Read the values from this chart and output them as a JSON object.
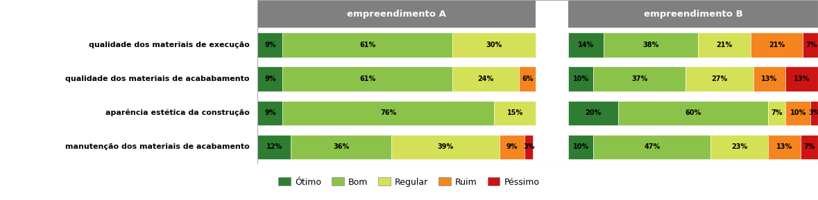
{
  "categories": [
    "qualidade dos materiais de execução",
    "qualidade dos materiais de acababamento",
    "aparência estética da construção",
    "manutenção dos materiais de acabamento"
  ],
  "header_A": "empreendimento A",
  "header_B": "empreendimento B",
  "data_A": [
    [
      9,
      61,
      30,
      0,
      0
    ],
    [
      9,
      61,
      24,
      6,
      0
    ],
    [
      9,
      76,
      15,
      0,
      0
    ],
    [
      12,
      36,
      39,
      9,
      3
    ]
  ],
  "data_B": [
    [
      14,
      38,
      21,
      21,
      7
    ],
    [
      10,
      37,
      27,
      13,
      13
    ],
    [
      20,
      60,
      7,
      10,
      3
    ],
    [
      10,
      47,
      23,
      13,
      7
    ]
  ],
  "labels_A": [
    [
      "9%",
      "61%",
      "30%",
      "",
      ""
    ],
    [
      "9%",
      "61%",
      "24%",
      "6%",
      ""
    ],
    [
      "9%",
      "76%",
      "15%",
      "",
      ""
    ],
    [
      "12%",
      "36%",
      "39%",
      "9%",
      "3%"
    ]
  ],
  "labels_B": [
    [
      "14%",
      "38%",
      "21%",
      "21%",
      "7%"
    ],
    [
      "10%",
      "37%",
      "27%",
      "13%",
      "13%"
    ],
    [
      "20%",
      "60%",
      "7%",
      "10%",
      "3%"
    ],
    [
      "10%",
      "47%",
      "23%",
      "13%",
      "7%"
    ]
  ],
  "colors": [
    "#2e7d32",
    "#8bc34a",
    "#d4e157",
    "#f4851f",
    "#cc1414"
  ],
  "legend_labels": [
    "Ótimo",
    "Bom",
    "Regular",
    "Ruim",
    "Péssimo"
  ],
  "header_color": "#808080",
  "header_text_color": "#ffffff",
  "background_color": "#ffffff",
  "label_fontsize": 7.0,
  "category_fontsize": 8.0,
  "header_fontsize": 9.5,
  "legend_fontsize": 9.0
}
